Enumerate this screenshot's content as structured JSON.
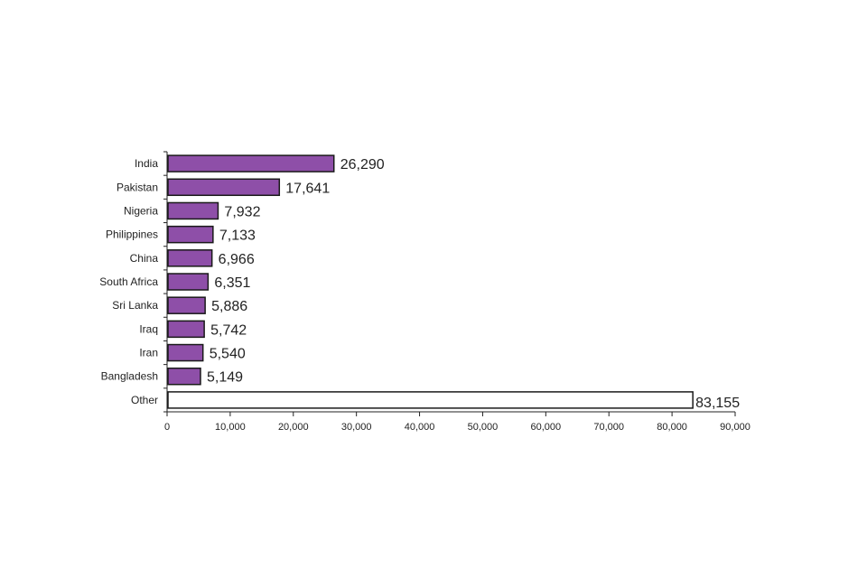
{
  "chart_data": {
    "type": "bar",
    "orientation": "horizontal",
    "categories": [
      "India",
      "Pakistan",
      "Nigeria",
      "Philippines",
      "China",
      "South Africa",
      "Sri Lanka",
      "Iraq",
      "Iran",
      "Bangladesh",
      "Other"
    ],
    "values": [
      26290,
      17641,
      7932,
      7133,
      6966,
      6351,
      5886,
      5742,
      5540,
      5149,
      83155
    ],
    "data_labels": [
      "26,290",
      "17,641",
      "7,932",
      "7,133",
      "6,966",
      "6,351",
      "5,886",
      "5,742",
      "5,540",
      "5,149",
      "83,155"
    ],
    "xlim": [
      0,
      90000
    ],
    "x_ticks": [
      0,
      10000,
      20000,
      30000,
      40000,
      50000,
      60000,
      70000,
      80000,
      90000
    ],
    "x_tick_labels": [
      "0",
      "10,000",
      "20,000",
      "30,000",
      "40,000",
      "50,000",
      "60,000",
      "70,000",
      "80,000",
      "90,000"
    ],
    "grid": false,
    "title": "",
    "xlabel": "",
    "ylabel": "",
    "colors": {
      "bar": "#8e4fa8",
      "other_bar": "#ffffff",
      "outline": "#1a1a1a"
    }
  }
}
